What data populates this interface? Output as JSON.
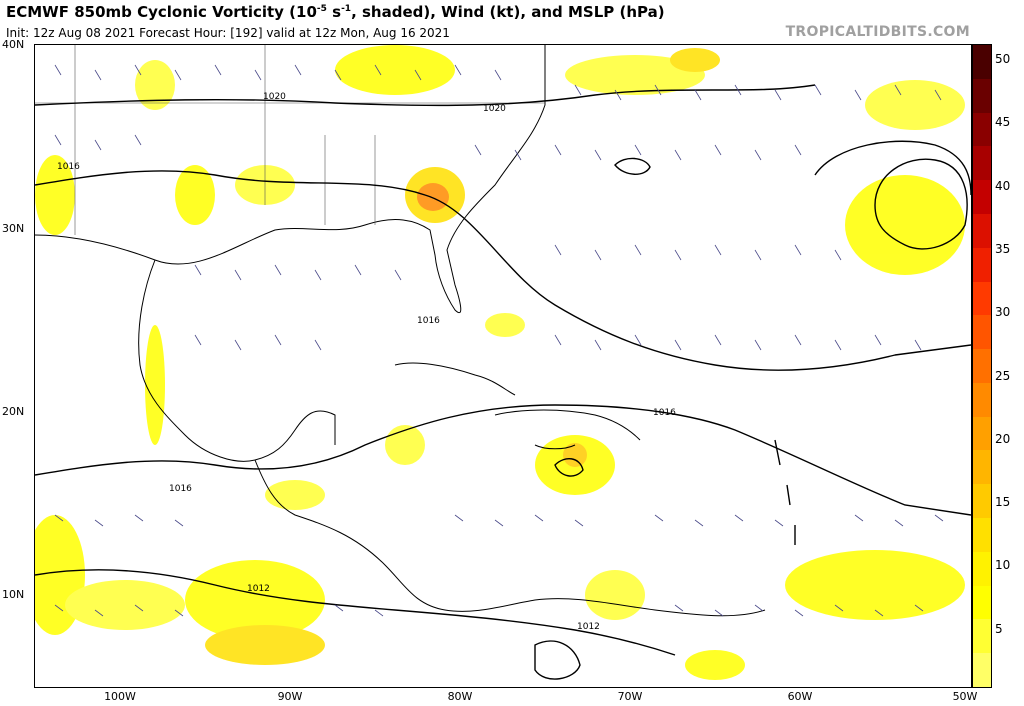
{
  "header": {
    "title_pre": "ECMWF 850mb Cyclonic Vorticity (10",
    "title_exp": "-5",
    "title_mid": " s",
    "title_exp2": "-1",
    "title_post": ", shaded), Wind (kt), and MSLP (hPa)",
    "subtitle": "Init: 12z Aug 08 2021   Forecast Hour: [192]   valid at 12z Mon, Aug 16 2021",
    "brand": "TROPICALTIDBITS.COM"
  },
  "axes": {
    "lat_labels": [
      "40N",
      "30N",
      "20N",
      "10N"
    ],
    "lon_labels": [
      "100W",
      "90W",
      "80W",
      "70W",
      "60W",
      "50W"
    ]
  },
  "isobar_labels": [
    "1020",
    "1020",
    "1016",
    "1016",
    "1016",
    "1016",
    "1012",
    "1012"
  ],
  "colorbar": {
    "ticks": [
      "50",
      "45",
      "40",
      "35",
      "30",
      "25",
      "20",
      "15",
      "10",
      "5"
    ],
    "colors": [
      "#4a0000",
      "#6a0000",
      "#8a0000",
      "#a80000",
      "#c40000",
      "#dc1000",
      "#f02000",
      "#ff3a00",
      "#ff5500",
      "#ff7000",
      "#ff8a00",
      "#ffa000",
      "#ffb500",
      "#ffca00",
      "#ffe000",
      "#fff200",
      "#ffff00",
      "#ffff33",
      "#ffff66"
    ]
  }
}
